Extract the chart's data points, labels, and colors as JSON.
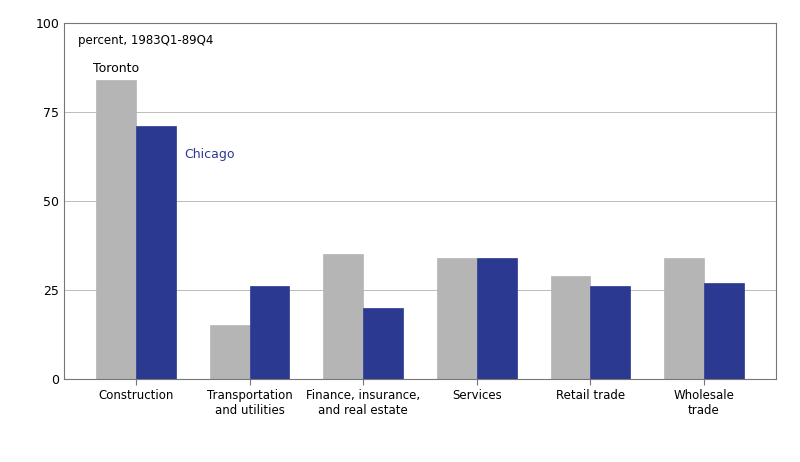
{
  "categories": [
    "Construction",
    "Transportation\nand utilities",
    "Finance, insurance,\nand real estate",
    "Services",
    "Retail trade",
    "Wholesale\ntrade"
  ],
  "toronto_values": [
    84,
    15,
    35,
    34,
    29,
    34
  ],
  "chicago_values": [
    71,
    26,
    20,
    34,
    26,
    27
  ],
  "toronto_color": "#b5b5b5",
  "chicago_color": "#2b3990",
  "toronto_label": "Toronto",
  "chicago_label": "Chicago",
  "subtitle": "percent, 1983Q1-89Q4",
  "ylim": [
    0,
    100
  ],
  "yticks": [
    0,
    25,
    50,
    75,
    100
  ],
  "bar_width": 0.35,
  "background_color": "#ffffff",
  "grid_color": "#bbbbbb",
  "border_color": "#777777"
}
